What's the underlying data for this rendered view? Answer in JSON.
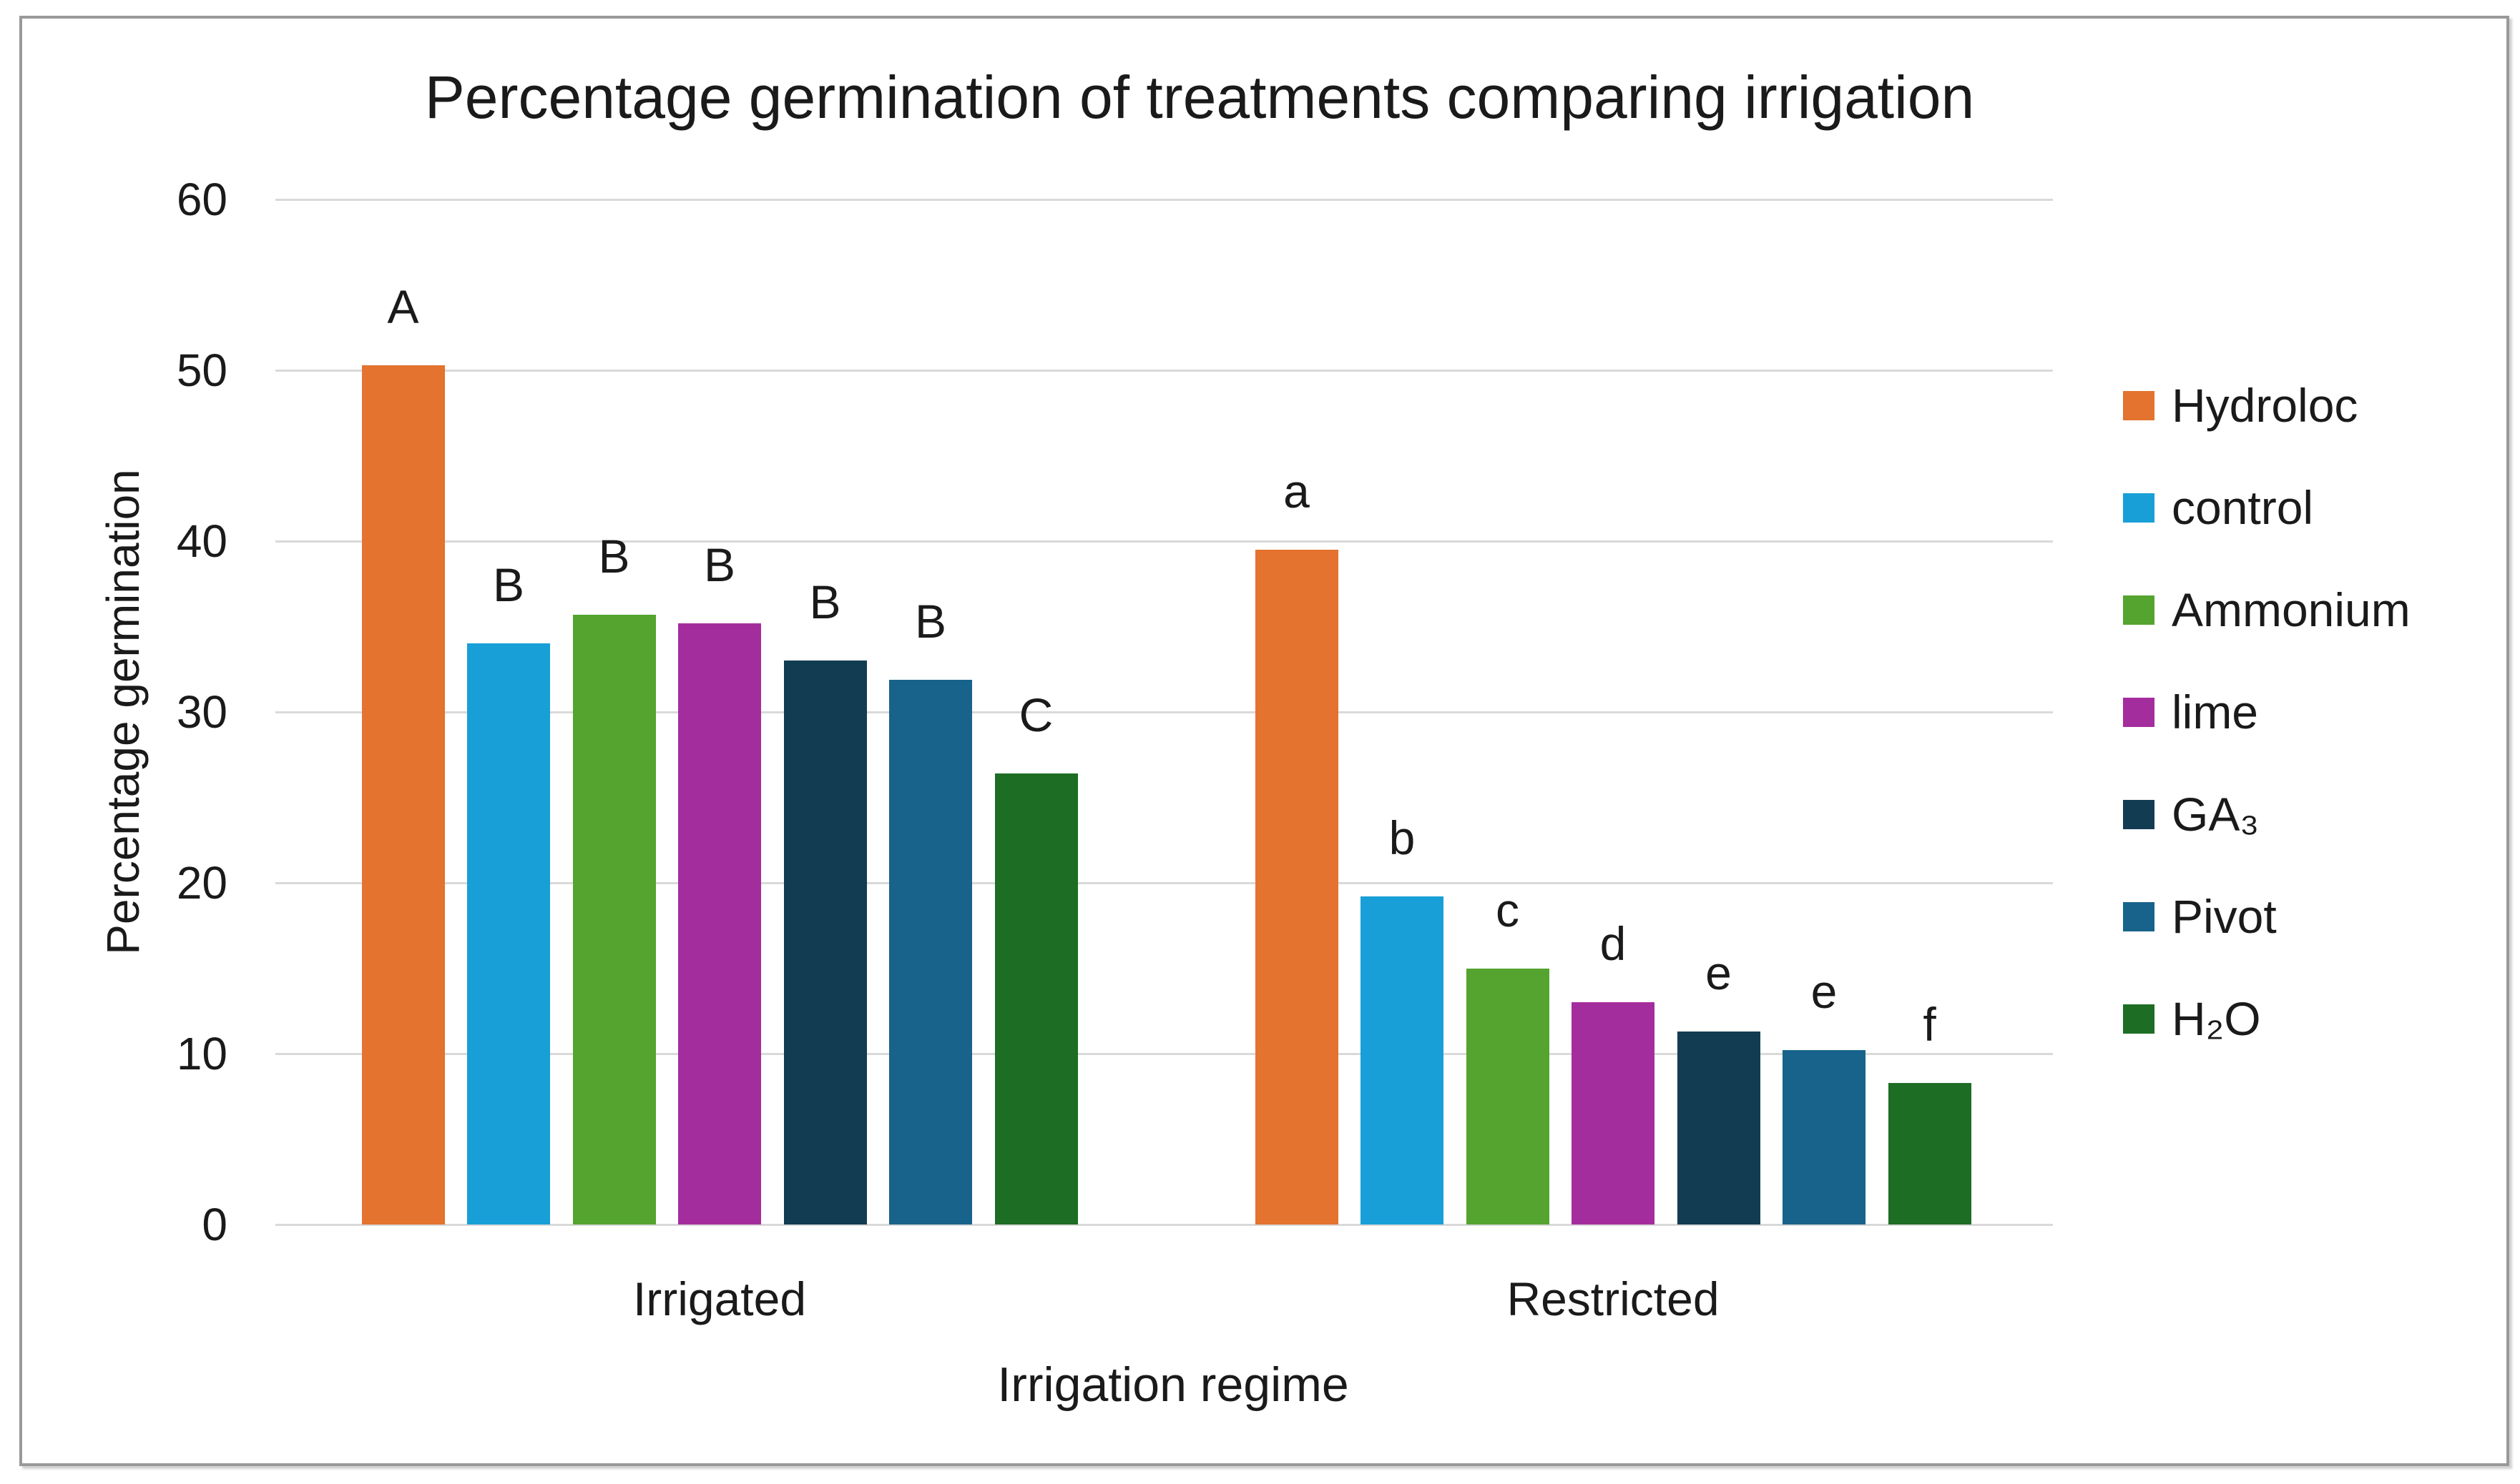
{
  "chart_data": {
    "type": "bar",
    "title": "Percentage germination of treatments comparing irrigation",
    "xlabel": "Irrigation regime",
    "ylabel": "Percentage germination",
    "ylim": [
      0,
      60
    ],
    "yticks": [
      0,
      10,
      20,
      30,
      40,
      50,
      60
    ],
    "grid": true,
    "legend_position": "right",
    "categories": [
      "Irrigated",
      "Restricted"
    ],
    "series": [
      {
        "name": "Hydroloc",
        "color": "#E3732E",
        "values": [
          50.3,
          39.5
        ],
        "sig_letters": [
          "A",
          "a"
        ]
      },
      {
        "name": "control",
        "color": "#189FD7",
        "values": [
          34.0,
          19.2
        ],
        "sig_letters": [
          "B",
          "b"
        ]
      },
      {
        "name": "Ammonium",
        "color": "#54A42F",
        "values": [
          35.7,
          15.0
        ],
        "sig_letters": [
          "B",
          "c"
        ]
      },
      {
        "name": "lime",
        "color": "#A42D9E",
        "values": [
          35.2,
          13.0
        ],
        "sig_letters": [
          "B",
          "d"
        ]
      },
      {
        "name": "GA₃",
        "color": "#123C52",
        "values": [
          33.0,
          11.3
        ],
        "sig_letters": [
          "B",
          "e"
        ]
      },
      {
        "name": "Pivot",
        "color": "#17638B",
        "values": [
          31.9,
          10.2
        ],
        "sig_letters": [
          "B",
          "e"
        ]
      },
      {
        "name": "H₂O",
        "color": "#1D6D25",
        "values": [
          26.4,
          8.3
        ],
        "sig_letters": [
          "C",
          "f"
        ]
      }
    ],
    "colors": {
      "background": "#FFFFFF",
      "grid": "#D9D9D9",
      "frame_border": "#999999",
      "text": "#1F1F1F"
    }
  }
}
